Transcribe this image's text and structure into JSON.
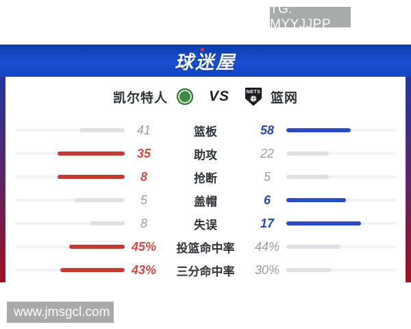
{
  "overlays": {
    "tg_badge": "TG: MYYJJPP",
    "watermark": "www.jmsgcl.com"
  },
  "header": {
    "logo_text": "球迷屋"
  },
  "matchup": {
    "home_team": "凯尔特人",
    "vs_label": "VS",
    "away_logo_text": "NETS",
    "away_team": "篮网"
  },
  "colors": {
    "home_accent": "#c23a38",
    "away_accent": "#2b4dc4",
    "neutral_fill": "#e0e0e3",
    "home_value": "#c94a47",
    "away_value": "#2a46ad",
    "neutral_value": "#9b9ba1",
    "header_blue": "#1a4fd0",
    "frame_gradient_top": "#24379e",
    "frame_gradient_bottom": "#9c1322"
  },
  "chart_data": {
    "type": "bar",
    "title": "凯尔特人 VS 篮网",
    "legend": [
      "凯尔特人",
      "篮网"
    ],
    "categories": [
      "篮板",
      "助攻",
      "抢断",
      "盖帽",
      "失误",
      "投篮命中率",
      "三分命中率"
    ],
    "series": [
      {
        "name": "凯尔特人",
        "values": [
          41,
          35,
          8,
          5,
          8,
          "45%",
          "43%"
        ]
      },
      {
        "name": "篮网",
        "values": [
          58,
          22,
          5,
          6,
          17,
          "44%",
          "30%"
        ]
      }
    ]
  },
  "stats": {
    "rows": [
      {
        "label": "篮板",
        "home": "41",
        "away": "58",
        "winner": "away",
        "home_fill_pct": 41.4,
        "away_fill_pct": 58.6
      },
      {
        "label": "助攻",
        "home": "35",
        "away": "22",
        "winner": "home",
        "home_fill_pct": 61.4,
        "away_fill_pct": 38.6
      },
      {
        "label": "抢断",
        "home": "8",
        "away": "5",
        "winner": "home",
        "home_fill_pct": 61.5,
        "away_fill_pct": 38.5
      },
      {
        "label": "盖帽",
        "home": "5",
        "away": "6",
        "winner": "away",
        "home_fill_pct": 45.5,
        "away_fill_pct": 54.5
      },
      {
        "label": "失误",
        "home": "8",
        "away": "17",
        "winner": "away",
        "home_fill_pct": 32.0,
        "away_fill_pct": 68.0
      },
      {
        "label": "投篮命中率",
        "home": "45%",
        "away": "44%",
        "winner": "home",
        "home_fill_pct": 50.6,
        "away_fill_pct": 49.4
      },
      {
        "label": "三分命中率",
        "home": "43%",
        "away": "30%",
        "winner": "home",
        "home_fill_pct": 58.9,
        "away_fill_pct": 41.1
      }
    ]
  }
}
